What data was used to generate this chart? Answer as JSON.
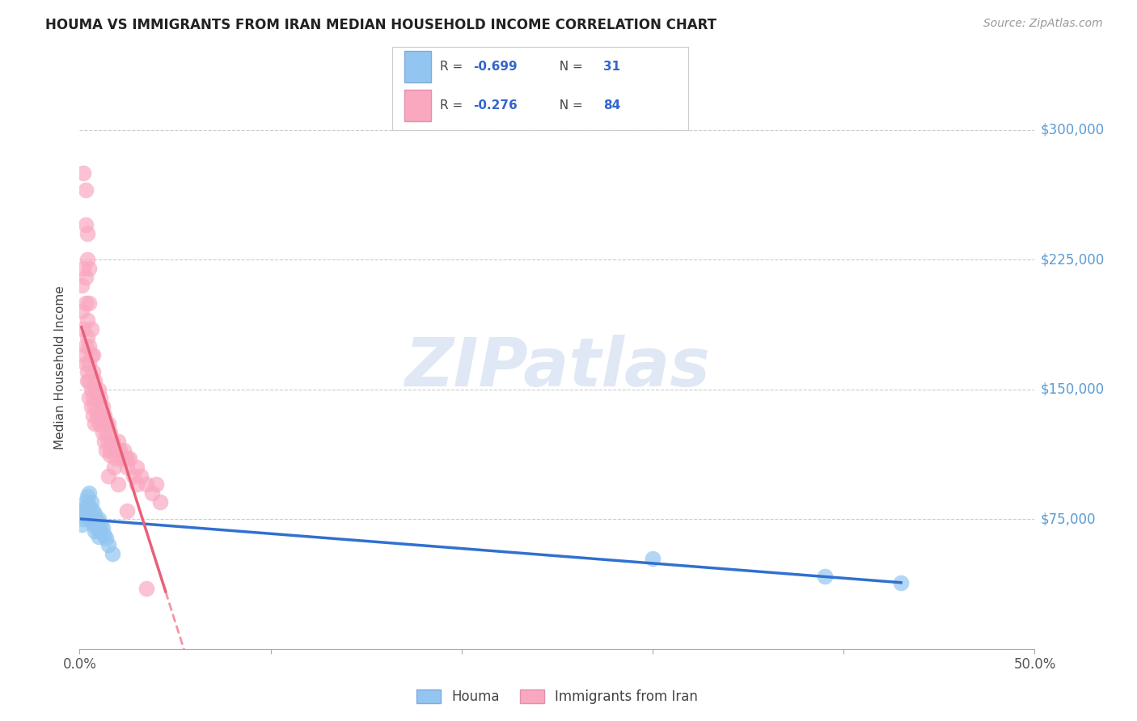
{
  "title": "HOUMA VS IMMIGRANTS FROM IRAN MEDIAN HOUSEHOLD INCOME CORRELATION CHART",
  "source": "Source: ZipAtlas.com",
  "ylabel": "Median Household Income",
  "yticks": [
    75000,
    150000,
    225000,
    300000
  ],
  "ytick_labels": [
    "$75,000",
    "$150,000",
    "$225,000",
    "$300,000"
  ],
  "xlim": [
    0.0,
    0.5
  ],
  "ylim": [
    0,
    325000
  ],
  "legend_label_blue": "Houma",
  "legend_label_pink": "Immigrants from Iran",
  "blue_color": "#92C5F0",
  "pink_color": "#F9A8C0",
  "blue_line_color": "#3070D0",
  "pink_line_color": "#E8607A",
  "blue_r": "-0.699",
  "blue_n": "31",
  "pink_r": "-0.276",
  "pink_n": "84",
  "houma_x": [
    0.001,
    0.002,
    0.002,
    0.003,
    0.003,
    0.003,
    0.004,
    0.004,
    0.005,
    0.005,
    0.005,
    0.006,
    0.006,
    0.007,
    0.007,
    0.008,
    0.008,
    0.009,
    0.009,
    0.01,
    0.01,
    0.011,
    0.011,
    0.012,
    0.013,
    0.014,
    0.015,
    0.017,
    0.3,
    0.39,
    0.43
  ],
  "houma_y": [
    72000,
    80000,
    75000,
    85000,
    78000,
    82000,
    88000,
    76000,
    90000,
    83000,
    79000,
    85000,
    74000,
    80000,
    72000,
    78000,
    68000,
    74000,
    70000,
    75000,
    65000,
    72000,
    68000,
    70000,
    66000,
    64000,
    60000,
    55000,
    52000,
    42000,
    38000
  ],
  "iran_x": [
    0.001,
    0.001,
    0.002,
    0.002,
    0.002,
    0.003,
    0.003,
    0.003,
    0.003,
    0.004,
    0.004,
    0.004,
    0.004,
    0.005,
    0.005,
    0.005,
    0.005,
    0.006,
    0.006,
    0.006,
    0.007,
    0.007,
    0.007,
    0.008,
    0.008,
    0.008,
    0.009,
    0.009,
    0.01,
    0.01,
    0.01,
    0.011,
    0.011,
    0.012,
    0.012,
    0.013,
    0.013,
    0.014,
    0.014,
    0.015,
    0.015,
    0.016,
    0.016,
    0.017,
    0.018,
    0.019,
    0.02,
    0.021,
    0.022,
    0.023,
    0.024,
    0.025,
    0.026,
    0.028,
    0.03,
    0.032,
    0.035,
    0.038,
    0.04,
    0.042,
    0.002,
    0.003,
    0.003,
    0.004,
    0.004,
    0.005,
    0.005,
    0.006,
    0.007,
    0.008,
    0.009,
    0.01,
    0.011,
    0.012,
    0.014,
    0.016,
    0.018,
    0.02,
    0.025,
    0.03,
    0.015,
    0.02,
    0.025,
    0.035
  ],
  "iran_y": [
    195000,
    210000,
    185000,
    220000,
    170000,
    215000,
    200000,
    175000,
    165000,
    190000,
    180000,
    160000,
    155000,
    175000,
    165000,
    155000,
    145000,
    170000,
    150000,
    140000,
    160000,
    145000,
    135000,
    150000,
    140000,
    130000,
    145000,
    135000,
    150000,
    140000,
    130000,
    145000,
    135000,
    140000,
    130000,
    135000,
    120000,
    130000,
    125000,
    130000,
    120000,
    125000,
    115000,
    120000,
    115000,
    110000,
    120000,
    115000,
    110000,
    115000,
    110000,
    105000,
    110000,
    100000,
    105000,
    100000,
    95000,
    90000,
    95000,
    85000,
    275000,
    265000,
    245000,
    240000,
    225000,
    220000,
    200000,
    185000,
    170000,
    155000,
    145000,
    135000,
    130000,
    125000,
    115000,
    112000,
    105000,
    95000,
    80000,
    95000,
    100000,
    115000,
    110000,
    35000
  ]
}
